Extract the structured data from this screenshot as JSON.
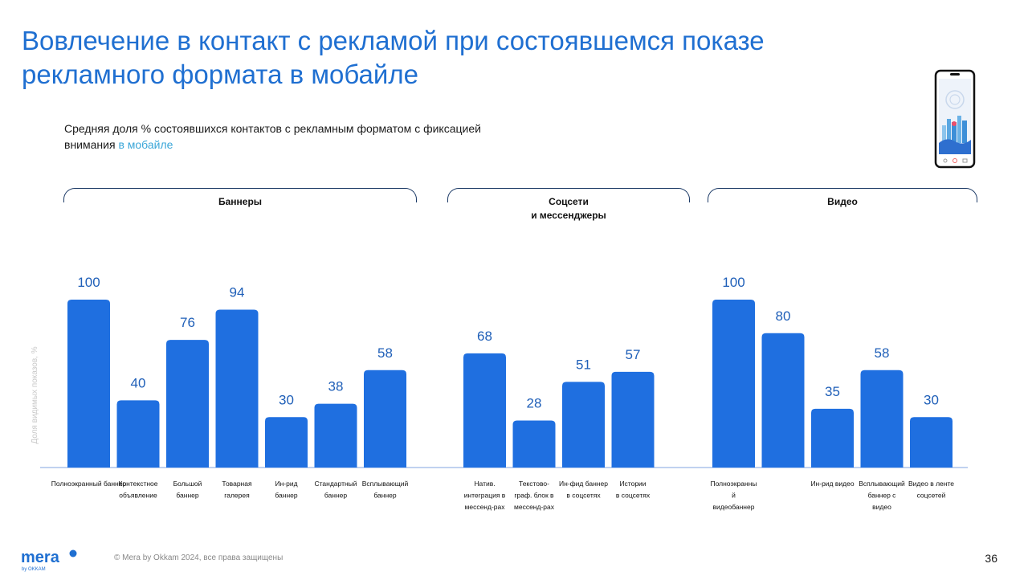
{
  "page": {
    "title": "Вовлечение в контакт с рекламой при состоявшемся показе рекламного формата в мобайле",
    "subtitle_main": "Средняя доля % состоявшихся контактов с рекламным форматом с фиксацией внимания ",
    "subtitle_highlight": "в мобайле",
    "footer_copyright": "© Mera by Okkam 2024, все права защищены",
    "logo_main": "mera",
    "logo_sub": "by OKKAM",
    "page_number": "36"
  },
  "colors": {
    "bar": "#1f6fe0",
    "value_label": "#1f5fb8",
    "title": "#1f6fd1",
    "highlight": "#3aa6d8",
    "bracket": "#1c3a66",
    "axis": "#9ab8e8"
  },
  "chart_data": {
    "type": "bar",
    "title": "",
    "xlabel": "",
    "ylabel": "Доля видимых показов, %",
    "ylim": [
      0,
      100
    ],
    "grid": false,
    "groups": [
      {
        "name_lines": [
          "Баннеры"
        ],
        "categories": [
          {
            "label_lines": [
              "Полноэкранный баннер"
            ],
            "value": 100
          },
          {
            "label_lines": [
              "Контекстное",
              "объявление"
            ],
            "value": 40
          },
          {
            "label_lines": [
              "Большой",
              "баннер"
            ],
            "value": 76
          },
          {
            "label_lines": [
              "Товарная",
              "галерея"
            ],
            "value": 94
          },
          {
            "label_lines": [
              "Ин-рид",
              "баннер"
            ],
            "value": 30
          },
          {
            "label_lines": [
              "Стандартный",
              "баннер"
            ],
            "value": 38
          },
          {
            "label_lines": [
              "Всплывающий",
              "баннер"
            ],
            "value": 58
          }
        ]
      },
      {
        "name_lines": [
          "Соцсети",
          "и мессенджеры"
        ],
        "categories": [
          {
            "label_lines": [
              "Натив.",
              "интеграция в",
              "мессенд-рах"
            ],
            "value": 68
          },
          {
            "label_lines": [
              "Текстово-",
              "граф. блок в",
              "мессенд-рах"
            ],
            "value": 28
          },
          {
            "label_lines": [
              "Ин-фид баннер",
              "в соцсетях"
            ],
            "value": 51
          },
          {
            "label_lines": [
              "Истории",
              "в соцсетях"
            ],
            "value": 57
          }
        ]
      },
      {
        "name_lines": [
          "Видео"
        ],
        "categories": [
          {
            "label_lines": [
              "Полноэкранны",
              "й",
              "видеобаннер"
            ],
            "value": 100
          },
          {
            "label_lines": [
              ""
            ],
            "value": 80
          },
          {
            "label_lines": [
              "Ин-рид видео"
            ],
            "value": 35
          },
          {
            "label_lines": [
              "Всплывающий",
              "баннер с",
              "видео"
            ],
            "value": 58
          },
          {
            "label_lines": [
              "Видео в ленте",
              "соцсетей"
            ],
            "value": 30
          }
        ]
      }
    ]
  }
}
